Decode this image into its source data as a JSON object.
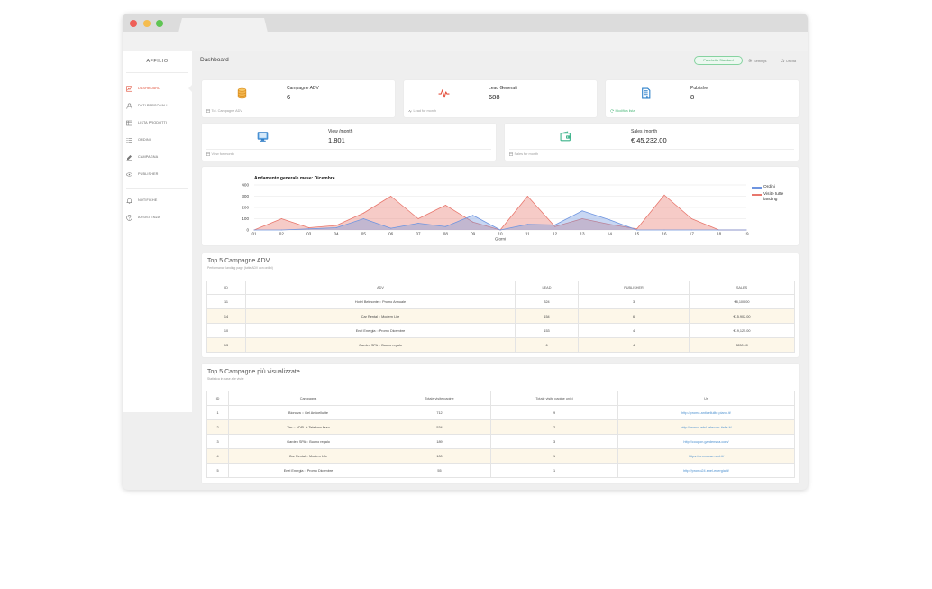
{
  "sidebar": {
    "brand": "AFFILIO",
    "active_color": "#e0533d",
    "items": [
      {
        "label": "DASHBOARD",
        "icon": "dashboard-icon"
      },
      {
        "label": "DATI PERSONALI",
        "icon": "user-icon"
      },
      {
        "label": "LISTA PRODOTTI",
        "icon": "list-icon"
      },
      {
        "label": "ORDINI",
        "icon": "orders-icon"
      },
      {
        "label": "CAMPAGNA",
        "icon": "campaign-icon"
      },
      {
        "label": "PUBLISHER",
        "icon": "publisher-icon"
      }
    ],
    "secondary": [
      {
        "label": "NOTIFICHE",
        "icon": "bell-icon"
      },
      {
        "label": "ASSISTENZA",
        "icon": "help-icon"
      }
    ]
  },
  "header": {
    "title": "Dashboard",
    "plan_button": "Pacchetto Standard",
    "settings": "Settings",
    "logout": "Uscita"
  },
  "stats": [
    {
      "label": "Campagne ADV",
      "value": "6",
      "footer": "Tot. Campagne ADV",
      "icon": "database-icon",
      "color": "#e9a23b"
    },
    {
      "label": "Lead Generati",
      "value": "688",
      "footer": "Lead for month",
      "icon": "pulse-icon",
      "color": "#e4523f"
    },
    {
      "label": "Publisher",
      "value": "8",
      "footer": "Modifica lista",
      "icon": "document-icon",
      "color": "#2a7fc9"
    },
    {
      "label": "View /month",
      "value": "1,801",
      "footer": "View for month",
      "icon": "monitor-icon",
      "color": "#3f8fd8"
    },
    {
      "label": "Sales /month",
      "value": "€ 45,232.00",
      "footer": "Sales for month",
      "icon": "wallet-icon",
      "color": "#3cb38a"
    }
  ],
  "chart_data": {
    "type": "area",
    "title": "Andamento generale mese: Dicembre",
    "xlabel": "Giorni",
    "ylabel": "",
    "x": [
      "01",
      "02",
      "03",
      "04",
      "05",
      "06",
      "07",
      "08",
      "09",
      "10",
      "11",
      "12",
      "13",
      "14",
      "15",
      "16",
      "17",
      "18",
      "19"
    ],
    "ylim": [
      0,
      400
    ],
    "yticks": [
      0,
      100,
      200,
      300,
      400
    ],
    "grid": true,
    "legend": "right",
    "series": [
      {
        "name": "Ordini",
        "color": "#6f95e0",
        "values": [
          0,
          0,
          10,
          20,
          100,
          15,
          60,
          30,
          130,
          0,
          50,
          45,
          170,
          90,
          0,
          0,
          0,
          0,
          0
        ]
      },
      {
        "name": "Visite tutte landing",
        "color": "#e8776d",
        "values": [
          0,
          100,
          20,
          40,
          150,
          300,
          100,
          220,
          70,
          0,
          300,
          30,
          100,
          50,
          10,
          310,
          100,
          0,
          0
        ]
      }
    ]
  },
  "top_adv": {
    "title": "Top 5 Campagne ADV",
    "subtitle": "Performance landing page (tutte ADV con ordini)",
    "columns": [
      "ID",
      "ADV",
      "LEAD",
      "PUBLISHER",
      "SALES"
    ],
    "rows": [
      [
        "11",
        "Hotel Belmonte :: Promo Annuale",
        "324",
        "3",
        "€8,100.00"
      ],
      [
        "14",
        "Car Rental :: Modern Life",
        "154",
        "6",
        "€15,902.00"
      ],
      [
        "10",
        "Enel Energia :: Promo Dicembre",
        "153",
        "4",
        "€19,125.00"
      ],
      [
        "13",
        "Garden SPA :: Buono regalo",
        "6",
        "4",
        "€830.00"
      ]
    ]
  },
  "top_visits": {
    "title": "Top 5 Campagne più visualizzate",
    "subtitle": "Statistica in base alle visite",
    "columns": [
      "ID",
      "Campagna",
      "Totale visite pagine",
      "Totale visite pagine unici",
      "Url"
    ],
    "rows": [
      [
        "1",
        "Bionova :: Gel Anticellulite",
        "712",
        "9",
        "http://promo-anticellulite.piano.it/"
      ],
      [
        "2",
        "Tim :: ADSL + Telefono fisso",
        "534",
        "2",
        "http://promo-adsl-telecom-italia.it/"
      ],
      [
        "3",
        "Garden SPA :: Buono regalo",
        "189",
        "3",
        "http://coupon.gardenspa.com/"
      ],
      [
        "4",
        "Car Rental :: Modern Life",
        "100",
        "1",
        "https://promocar-rent.it/"
      ],
      [
        "5",
        "Enel Energia :: Promo Dicembre",
        "55",
        "1",
        "http://promo24.enel-energia.it/"
      ]
    ]
  }
}
